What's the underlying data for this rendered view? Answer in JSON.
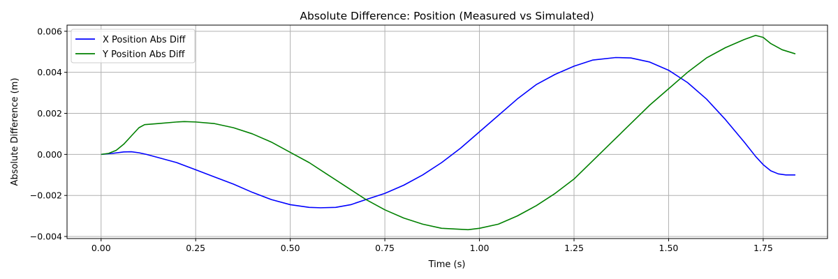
{
  "chart_data": {
    "type": "line",
    "title": "Absolute Difference: Position (Measured vs Simulated)",
    "xlabel": "Time (s)",
    "ylabel": "Absolute Difference (m)",
    "xlim": [
      -0.09,
      1.92
    ],
    "ylim": [
      -0.0041,
      0.0063
    ],
    "xticks": [
      0.0,
      0.25,
      0.5,
      0.75,
      1.0,
      1.25,
      1.5,
      1.75
    ],
    "xtick_labels": [
      "0.00",
      "0.25",
      "0.50",
      "0.75",
      "1.00",
      "1.25",
      "1.50",
      "1.75"
    ],
    "yticks": [
      -0.004,
      -0.002,
      0.0,
      0.002,
      0.004,
      0.006
    ],
    "ytick_labels": [
      "−0.004",
      "−0.002",
      "0.000",
      "0.002",
      "0.004",
      "0.006"
    ],
    "grid": true,
    "legend_position": "upper-left",
    "series": [
      {
        "name": "X Position Abs Diff",
        "color": "#0000ff",
        "points": [
          [
            0.0,
            0.0
          ],
          [
            0.03,
            5e-05
          ],
          [
            0.06,
            0.00012
          ],
          [
            0.08,
            0.00013
          ],
          [
            0.1,
            8e-05
          ],
          [
            0.12,
            0.0
          ],
          [
            0.15,
            -0.00015
          ],
          [
            0.2,
            -0.0004
          ],
          [
            0.25,
            -0.00075
          ],
          [
            0.3,
            -0.0011
          ],
          [
            0.35,
            -0.00145
          ],
          [
            0.4,
            -0.00185
          ],
          [
            0.45,
            -0.0022
          ],
          [
            0.5,
            -0.00245
          ],
          [
            0.55,
            -0.00258
          ],
          [
            0.58,
            -0.0026
          ],
          [
            0.62,
            -0.00258
          ],
          [
            0.66,
            -0.00245
          ],
          [
            0.7,
            -0.0022
          ],
          [
            0.75,
            -0.0019
          ],
          [
            0.8,
            -0.0015
          ],
          [
            0.85,
            -0.001
          ],
          [
            0.9,
            -0.0004
          ],
          [
            0.95,
            0.0003
          ],
          [
            1.0,
            0.0011
          ],
          [
            1.05,
            0.0019
          ],
          [
            1.1,
            0.0027
          ],
          [
            1.15,
            0.0034
          ],
          [
            1.2,
            0.0039
          ],
          [
            1.25,
            0.0043
          ],
          [
            1.3,
            0.0046
          ],
          [
            1.36,
            0.00472
          ],
          [
            1.4,
            0.0047
          ],
          [
            1.45,
            0.0045
          ],
          [
            1.5,
            0.0041
          ],
          [
            1.55,
            0.0035
          ],
          [
            1.6,
            0.0027
          ],
          [
            1.65,
            0.0017
          ],
          [
            1.7,
            0.0006
          ],
          [
            1.73,
            -0.0001
          ],
          [
            1.75,
            -0.0005
          ],
          [
            1.77,
            -0.0008
          ],
          [
            1.79,
            -0.00095
          ],
          [
            1.81,
            -0.001
          ],
          [
            1.835,
            -0.001
          ]
        ]
      },
      {
        "name": "Y Position Abs Diff",
        "color": "#008000",
        "points": [
          [
            0.0,
            0.0
          ],
          [
            0.02,
            5e-05
          ],
          [
            0.04,
            0.0002
          ],
          [
            0.06,
            0.0005
          ],
          [
            0.08,
            0.0009
          ],
          [
            0.1,
            0.0013
          ],
          [
            0.115,
            0.00145
          ],
          [
            0.15,
            0.0015
          ],
          [
            0.2,
            0.00158
          ],
          [
            0.22,
            0.0016
          ],
          [
            0.25,
            0.00158
          ],
          [
            0.3,
            0.0015
          ],
          [
            0.35,
            0.0013
          ],
          [
            0.4,
            0.001
          ],
          [
            0.45,
            0.0006
          ],
          [
            0.5,
            0.0001
          ],
          [
            0.55,
            -0.0004
          ],
          [
            0.6,
            -0.001
          ],
          [
            0.65,
            -0.0016
          ],
          [
            0.7,
            -0.0022
          ],
          [
            0.75,
            -0.0027
          ],
          [
            0.8,
            -0.0031
          ],
          [
            0.85,
            -0.0034
          ],
          [
            0.9,
            -0.0036
          ],
          [
            0.97,
            -0.00367
          ],
          [
            1.0,
            -0.0036
          ],
          [
            1.05,
            -0.0034
          ],
          [
            1.1,
            -0.003
          ],
          [
            1.15,
            -0.0025
          ],
          [
            1.2,
            -0.0019
          ],
          [
            1.25,
            -0.0012
          ],
          [
            1.3,
            -0.0003
          ],
          [
            1.35,
            0.0006
          ],
          [
            1.4,
            0.0015
          ],
          [
            1.45,
            0.0024
          ],
          [
            1.5,
            0.0032
          ],
          [
            1.55,
            0.004
          ],
          [
            1.6,
            0.0047
          ],
          [
            1.65,
            0.0052
          ],
          [
            1.7,
            0.0056
          ],
          [
            1.73,
            0.0058
          ],
          [
            1.75,
            0.0057
          ],
          [
            1.77,
            0.0054
          ],
          [
            1.8,
            0.0051
          ],
          [
            1.835,
            0.0049
          ]
        ]
      }
    ]
  }
}
